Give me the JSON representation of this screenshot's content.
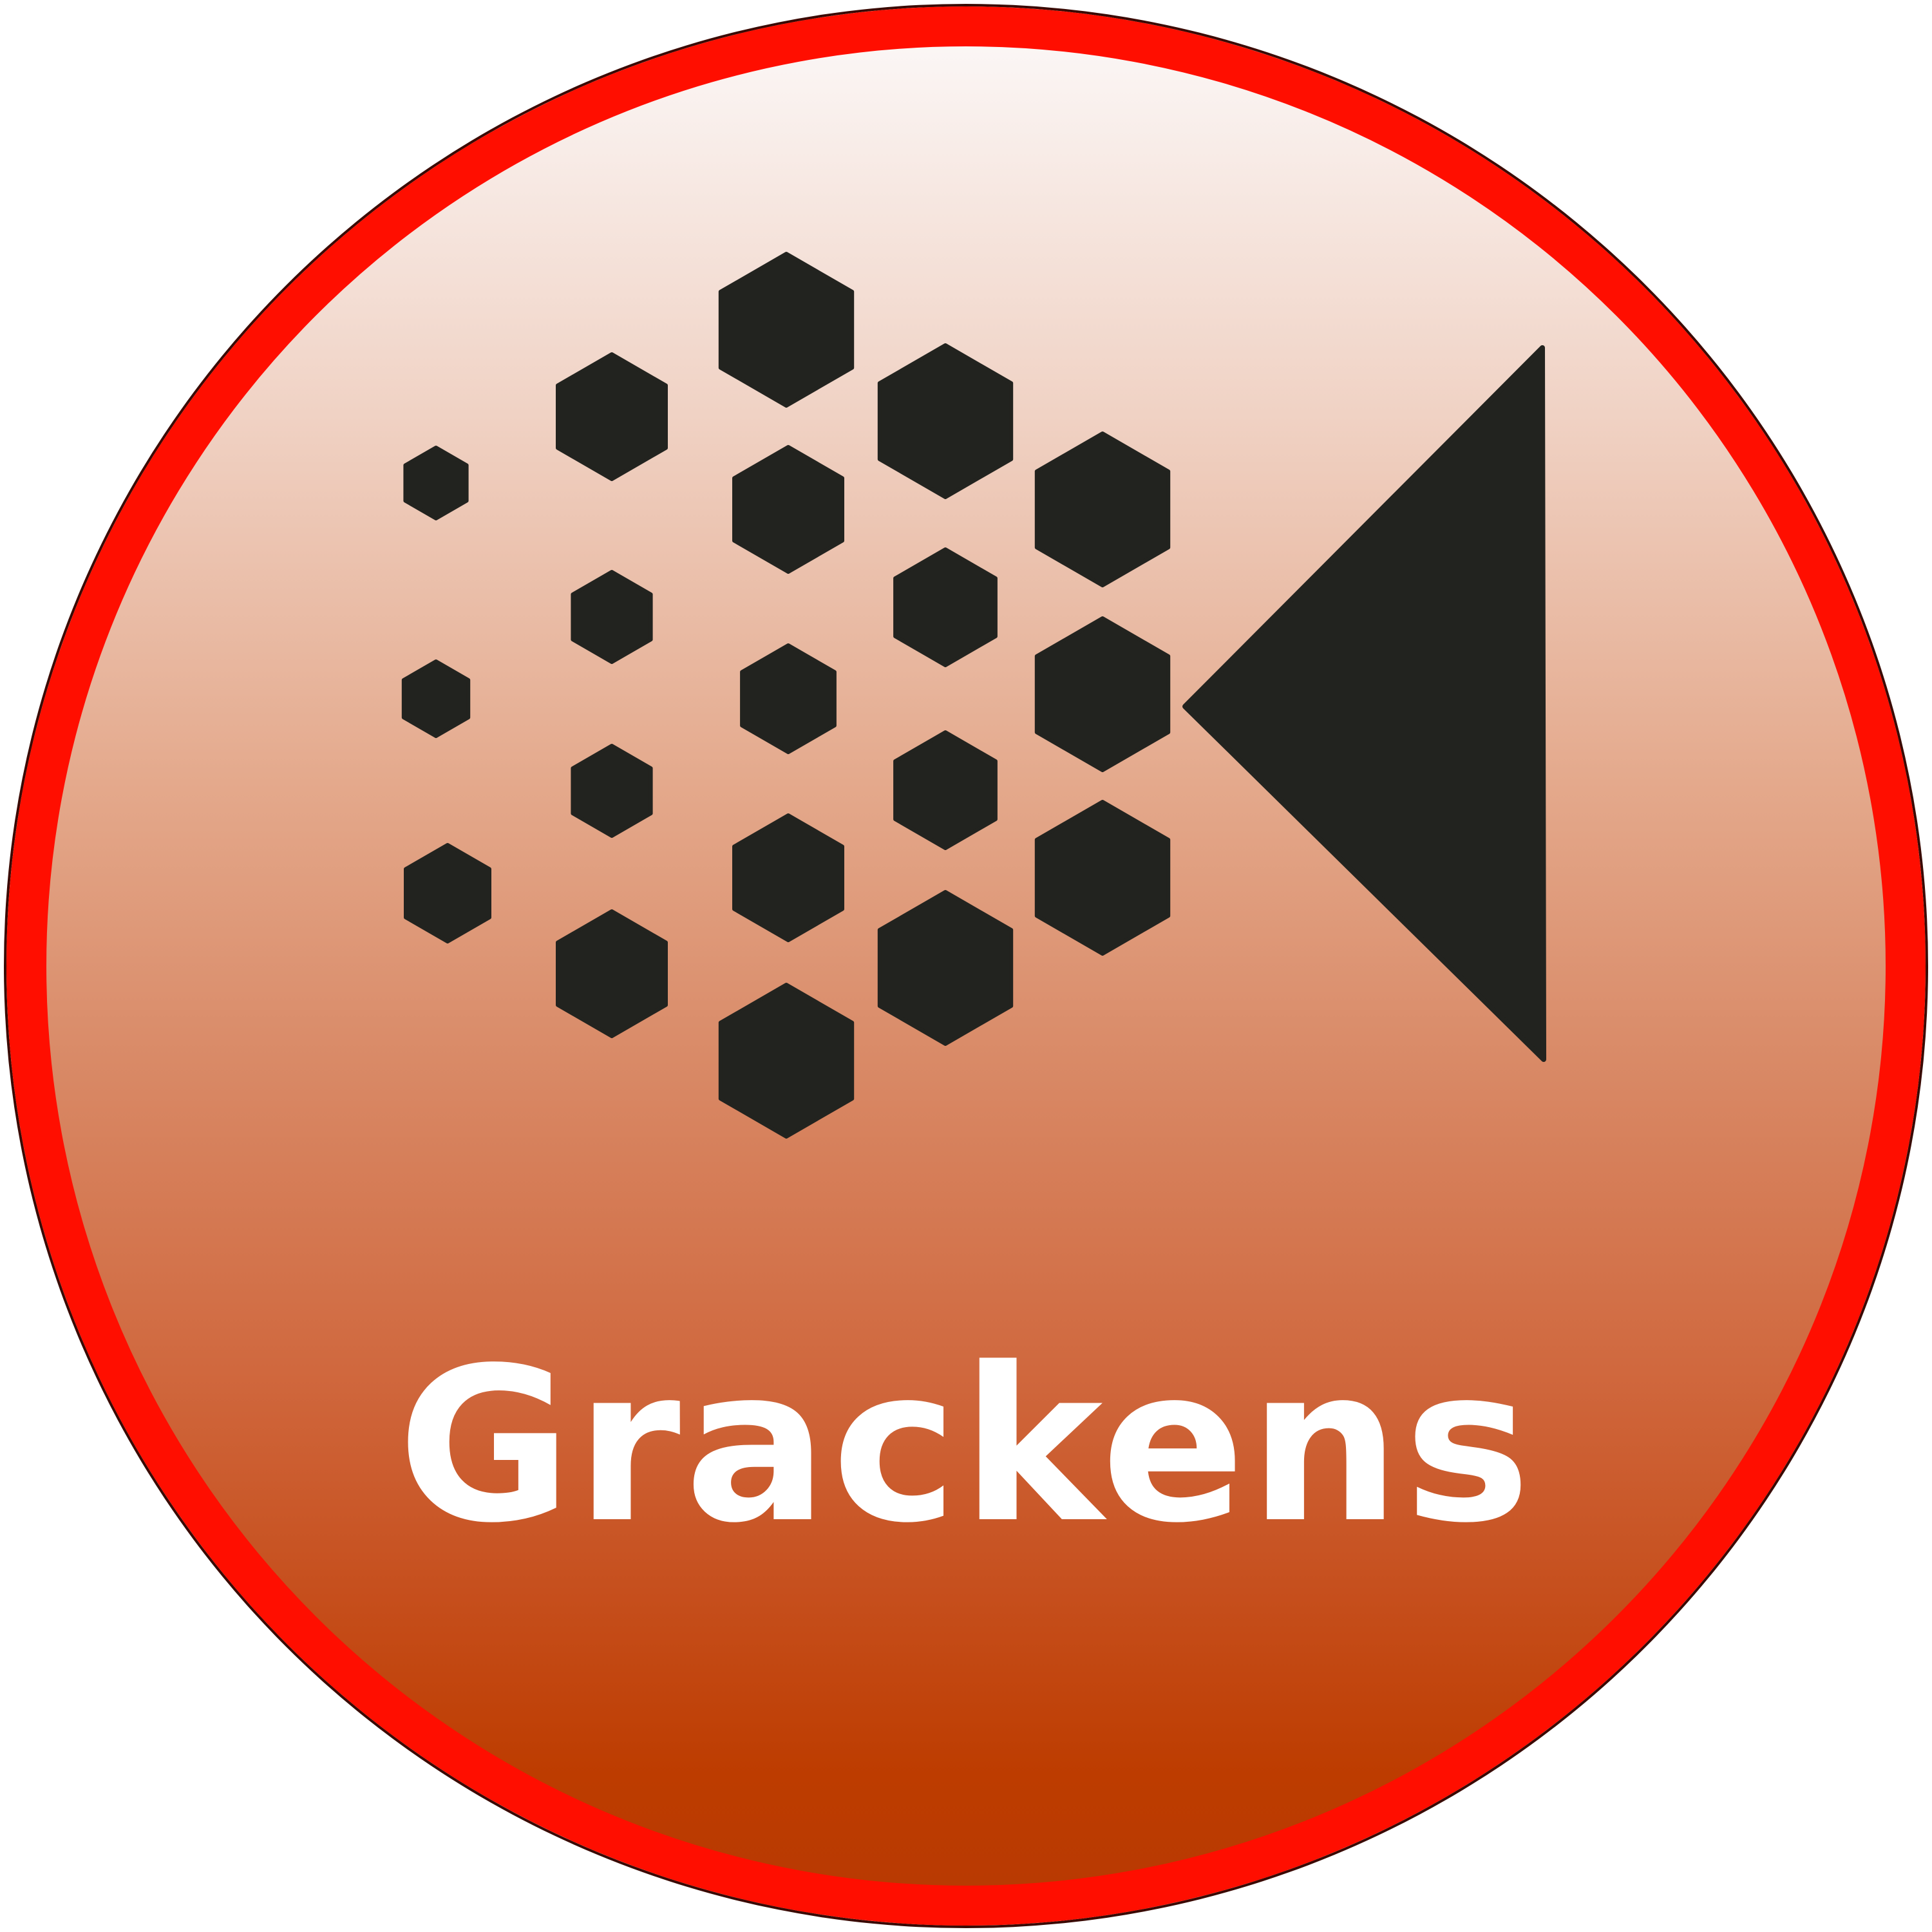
{
  "logo": {
    "name": "Grackens",
    "icon": "hexagon-cluster-play-icon",
    "colors": {
      "ring": "#ff0e00",
      "gradient_top": "#fbf6f5",
      "gradient_bottom": "#b93a02",
      "mark": "#22231f",
      "text": "#ffffff"
    }
  }
}
